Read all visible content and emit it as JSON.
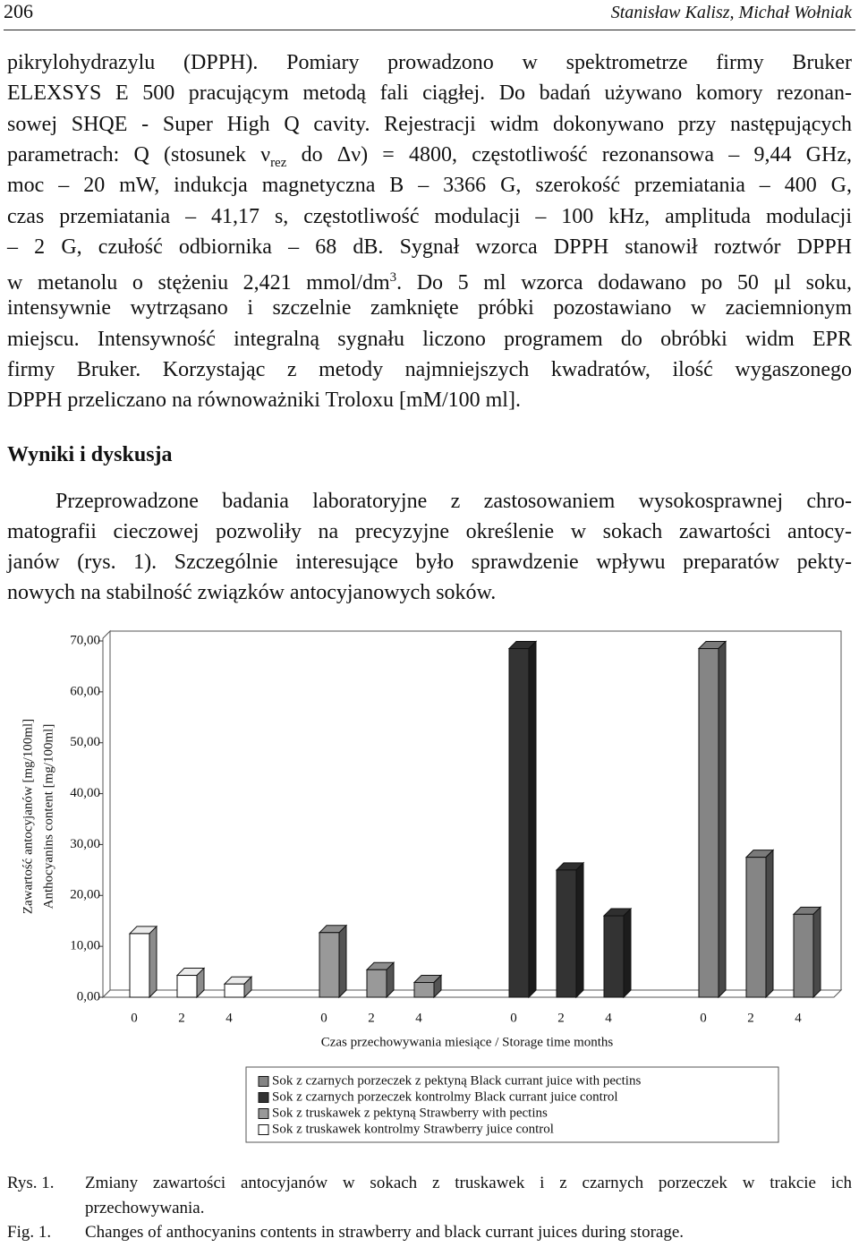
{
  "header": {
    "page": "206",
    "authors": "Stanisław Kalisz, Michał Wołniak"
  },
  "paragraph_1": [
    "pikrylohydrazylu (DPPH). Pomiary prowadzono w spektrometrze firmy Bruker",
    "ELEXSYS E 500 pracującym metodą fali ciągłej. Do badań używano komory rezonan-",
    "sowej SHQE - Super High Q cavity. Rejestracji widm dokonywano przy następujących",
    [
      "parametrach: Q (stosunek ν",
      {
        "sub": "rez"
      },
      " do Δν) = 4800, częstotliwość rezonansowa – 9,44 GHz,"
    ],
    "moc – 20 mW, indukcja magnetyczna B – 3366 G, szerokość przemiatania – 400 G,",
    "czas przemiatania – 41,17 s, częstotliwość modulacji – 100 kHz, amplituda modulacji",
    "– 2 G, czułość odbiornika – 68 dB. Sygnał wzorca DPPH stanowił roztwór DPPH",
    [
      "w metanolu o stężeniu 2,421 mmol/dm",
      {
        "sup": "3"
      },
      ". Do 5 ml wzorca dodawano po 50 μl soku,"
    ],
    "intensywnie wytrząsano i szczelnie zamknięte próbki pozostawiano w zaciemnionym",
    "miejscu. Intensywność integralną sygnału liczono programem do obróbki widm EPR",
    "firmy Bruker. Korzystając z metody najmniejszych kwadratów, ilość wygaszonego",
    "DPPH przeliczano na równoważniki Troloxu [mM/100 ml]."
  ],
  "heading": "Wyniki i dyskusja",
  "paragraph_2": [
    "Przeprowadzone badania laboratoryjne z zastosowaniem wysokosprawnej chro-",
    "matografii cieczowej pozwoliły na precyzyjne określenie w sokach zawartości antocy-",
    "janów (rys. 1). Szczególnie interesujące było sprawdzenie wpływu preparatów pekty-",
    "nowych na stabilność związków antocyjanowych soków."
  ],
  "chart_data": {
    "type": "bar3d",
    "ylabel": [
      "Zawartość antocyjanów [mg/100ml]",
      "Anthocyanins content [mg/100ml]"
    ],
    "xlabel": "Czas przechowywania miesiące / Storage time months",
    "categories": [
      "0",
      "2",
      "4",
      null,
      "0",
      "2",
      "4",
      null,
      "0",
      "2",
      "4",
      null,
      "0",
      "2",
      "4"
    ],
    "ylim": [
      0,
      70
    ],
    "yticks": [
      {
        "value": 0,
        "label": "0,00"
      },
      {
        "value": 10,
        "label": "10,00"
      },
      {
        "value": 20,
        "label": "20,00"
      },
      {
        "value": 30,
        "label": "30,00"
      },
      {
        "value": 40,
        "label": "40,00"
      },
      {
        "value": 50,
        "label": "50,00"
      },
      {
        "value": 60,
        "label": "60,00"
      },
      {
        "value": 70,
        "label": "70,00"
      }
    ],
    "series": [
      {
        "name": "Sok z czarnych porzeczek z pektyną Black currant juice with pectins",
        "color": "#858585",
        "values": [
          null,
          null,
          null,
          null,
          null,
          null,
          null,
          null,
          null,
          null,
          null,
          null,
          68.5,
          27.5,
          16.3
        ]
      },
      {
        "name": "Sok z czarnych porzeczek kontrolmy Black currant juice control",
        "color": "#333333",
        "values": [
          null,
          null,
          null,
          null,
          null,
          null,
          null,
          null,
          68.5,
          25.0,
          16.0,
          null,
          null,
          null,
          null
        ]
      },
      {
        "name": "Sok z truskawek z pektyną Strawberry with pectins",
        "color": "#999999",
        "values": [
          null,
          null,
          null,
          null,
          12.7,
          5.4,
          2.9,
          null,
          null,
          null,
          null,
          null,
          null,
          null,
          null
        ]
      },
      {
        "name": "Sok z truskawek kontrolmy Strawberry juice control",
        "color": "#ffffff",
        "values": [
          12.5,
          4.3,
          2.6,
          null,
          null,
          null,
          null,
          null,
          null,
          null,
          null,
          null,
          null,
          null,
          null
        ]
      }
    ]
  },
  "caption": {
    "rys_label": "Rys. 1.",
    "rys_text": [
      "Zmiany zawartości antocyjanów w sokach z truskawek i z czarnych porzeczek w trakcie ich",
      "przechowywania."
    ],
    "fig_label": "Fig. 1.",
    "fig_text": "Changes of anthocyanins contents in strawberry and black currant juices during storage."
  }
}
